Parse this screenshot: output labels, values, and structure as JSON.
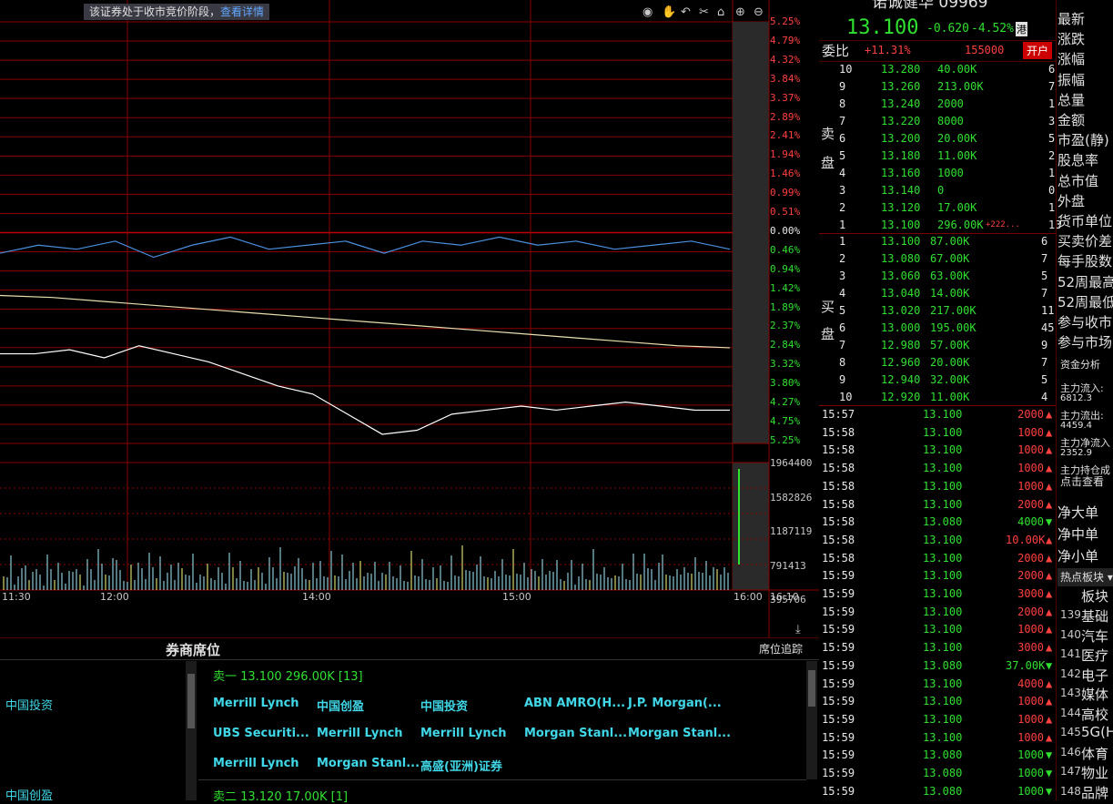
{
  "notice": {
    "text": "该证券处于收市竞价阶段，",
    "link": "查看详情"
  },
  "pct_labels": [
    {
      "text": "5.25%",
      "color": "#ff4040"
    },
    {
      "text": "4.79%",
      "color": "#ff4040"
    },
    {
      "text": "4.32%",
      "color": "#ff4040"
    },
    {
      "text": "3.84%",
      "color": "#ff4040"
    },
    {
      "text": "3.37%",
      "color": "#ff4040"
    },
    {
      "text": "2.89%",
      "color": "#ff4040"
    },
    {
      "text": "2.41%",
      "color": "#ff4040"
    },
    {
      "text": "1.94%",
      "color": "#ff4040"
    },
    {
      "text": "1.46%",
      "color": "#ff4040"
    },
    {
      "text": "0.99%",
      "color": "#ff4040"
    },
    {
      "text": "0.51%",
      "color": "#ff4040"
    },
    {
      "text": "0.00%",
      "color": "#e8e8e8"
    },
    {
      "text": "0.46%",
      "color": "#30e030"
    },
    {
      "text": "0.94%",
      "color": "#30e030"
    },
    {
      "text": "1.42%",
      "color": "#30e030"
    },
    {
      "text": "1.89%",
      "color": "#30e030"
    },
    {
      "text": "2.37%",
      "color": "#30e030"
    },
    {
      "text": "2.84%",
      "color": "#30e030"
    },
    {
      "text": "3.32%",
      "color": "#30e030"
    },
    {
      "text": "3.80%",
      "color": "#30e030"
    },
    {
      "text": "4.27%",
      "color": "#30e030"
    },
    {
      "text": "4.75%",
      "color": "#30e030"
    },
    {
      "text": "5.25%",
      "color": "#30e030"
    }
  ],
  "volume_labels": [
    "1964400",
    "1582826",
    "1187119",
    "791413",
    "395706"
  ],
  "time_labels": [
    "11:30",
    "12:00",
    "14:00",
    "15:00",
    "16:00",
    "16:10"
  ],
  "header": {
    "price": "13.100",
    "change": "-0.620",
    "change_pct": "-4.52%",
    "market_badge": "港"
  },
  "weibi": {
    "label": "委比",
    "value": "+11.31%",
    "volume": "155000",
    "button": "开户"
  },
  "sell_label": [
    "卖",
    "盘"
  ],
  "buy_label": [
    "买",
    "盘"
  ],
  "asks": [
    {
      "lvl": "10",
      "price": "13.280",
      "vol": "40.00K",
      "n": "6"
    },
    {
      "lvl": "9",
      "price": "13.260",
      "vol": "213.00K",
      "n": "7"
    },
    {
      "lvl": "8",
      "price": "13.240",
      "vol": "2000",
      "n": "1"
    },
    {
      "lvl": "7",
      "price": "13.220",
      "vol": "8000",
      "n": "3"
    },
    {
      "lvl": "6",
      "price": "13.200",
      "vol": "20.00K",
      "n": "5"
    },
    {
      "lvl": "5",
      "price": "13.180",
      "vol": "11.00K",
      "n": "2"
    },
    {
      "lvl": "4",
      "price": "13.160",
      "vol": "1000",
      "n": "1"
    },
    {
      "lvl": "3",
      "price": "13.140",
      "vol": "0",
      "n": "0"
    },
    {
      "lvl": "2",
      "price": "13.120",
      "vol": "17.00K",
      "n": "1"
    },
    {
      "lvl": "1",
      "price": "13.100",
      "vol": "296.00K",
      "n": "13",
      "extra": "+222..."
    }
  ],
  "bids": [
    {
      "lvl": "1",
      "price": "13.100",
      "vol": "87.00K",
      "n": "6"
    },
    {
      "lvl": "2",
      "price": "13.080",
      "vol": "67.00K",
      "n": "7"
    },
    {
      "lvl": "3",
      "price": "13.060",
      "vol": "63.00K",
      "n": "5"
    },
    {
      "lvl": "4",
      "price": "13.040",
      "vol": "14.00K",
      "n": "7"
    },
    {
      "lvl": "5",
      "price": "13.020",
      "vol": "217.00K",
      "n": "11"
    },
    {
      "lvl": "6",
      "price": "13.000",
      "vol": "195.00K",
      "n": "45"
    },
    {
      "lvl": "7",
      "price": "12.980",
      "vol": "57.00K",
      "n": "9"
    },
    {
      "lvl": "8",
      "price": "12.960",
      "vol": "20.00K",
      "n": "7"
    },
    {
      "lvl": "9",
      "price": "12.940",
      "vol": "32.00K",
      "n": "5"
    },
    {
      "lvl": "10",
      "price": "12.920",
      "vol": "11.00K",
      "n": "4"
    }
  ],
  "ticks": [
    {
      "t": "15:57",
      "p": "13.100",
      "v": "2000",
      "d": "up"
    },
    {
      "t": "15:58",
      "p": "13.100",
      "v": "1000",
      "d": "up"
    },
    {
      "t": "15:58",
      "p": "13.100",
      "v": "1000",
      "d": "up"
    },
    {
      "t": "15:58",
      "p": "13.100",
      "v": "1000",
      "d": "up"
    },
    {
      "t": "15:58",
      "p": "13.100",
      "v": "1000",
      "d": "up"
    },
    {
      "t": "15:58",
      "p": "13.100",
      "v": "2000",
      "d": "up"
    },
    {
      "t": "15:58",
      "p": "13.080",
      "v": "4000",
      "d": "down"
    },
    {
      "t": "15:58",
      "p": "13.100",
      "v": "10.00K",
      "d": "up"
    },
    {
      "t": "15:58",
      "p": "13.100",
      "v": "2000",
      "d": "up"
    },
    {
      "t": "15:59",
      "p": "13.100",
      "v": "2000",
      "d": "up"
    },
    {
      "t": "15:59",
      "p": "13.100",
      "v": "3000",
      "d": "up"
    },
    {
      "t": "15:59",
      "p": "13.100",
      "v": "2000",
      "d": "up"
    },
    {
      "t": "15:59",
      "p": "13.100",
      "v": "1000",
      "d": "up"
    },
    {
      "t": "15:59",
      "p": "13.100",
      "v": "3000",
      "d": "up"
    },
    {
      "t": "15:59",
      "p": "13.080",
      "v": "37.00K",
      "d": "down"
    },
    {
      "t": "15:59",
      "p": "13.100",
      "v": "4000",
      "d": "up"
    },
    {
      "t": "15:59",
      "p": "13.100",
      "v": "1000",
      "d": "up"
    },
    {
      "t": "15:59",
      "p": "13.100",
      "v": "1000",
      "d": "up"
    },
    {
      "t": "15:59",
      "p": "13.100",
      "v": "1000",
      "d": "up"
    },
    {
      "t": "15:59",
      "p": "13.080",
      "v": "1000",
      "d": "down"
    },
    {
      "t": "15:59",
      "p": "13.080",
      "v": "1000",
      "d": "down"
    },
    {
      "t": "15:59",
      "p": "13.080",
      "v": "1000",
      "d": "down"
    }
  ],
  "side_labels": [
    "最新",
    "涨跌",
    "涨幅",
    "振幅",
    "总量",
    "金额",
    "市盈(静)",
    "股息率",
    "总市值",
    "外盘",
    "货币单位",
    "买卖价差",
    "每手股数",
    "52周最高",
    "52周最低",
    "参与收市",
    "参与市场"
  ],
  "fund": {
    "title": "资金分析",
    "in_label": "主力流入:",
    "in_value": "6812.3",
    "out_label": "主力流出:",
    "out_value": "4459.4",
    "net_label": "主力净流入",
    "net_value": "2352.9",
    "hold_label": "主力持仓成",
    "link": "点击查看"
  },
  "orders": [
    "净大单",
    "净中单",
    "净小单"
  ],
  "hot_tab": "热点板块",
  "sectors_title": "板块",
  "sectors": [
    {
      "n": "139",
      "name": "基础"
    },
    {
      "n": "140",
      "name": "汽车"
    },
    {
      "n": "141",
      "name": "医疗"
    },
    {
      "n": "142",
      "name": "电子"
    },
    {
      "n": "143",
      "name": "媒体"
    },
    {
      "n": "144",
      "name": "高校"
    },
    {
      "n": "145",
      "name": "5G(H"
    },
    {
      "n": "146",
      "name": "体育"
    },
    {
      "n": "147",
      "name": "物业"
    },
    {
      "n": "148",
      "name": "品牌"
    }
  ],
  "broker": {
    "title": "券商席位",
    "tab": "席位追踪",
    "left": [
      "中国投资",
      "中国创盈"
    ],
    "sell1": "卖一  13.100 296.00K [13]",
    "sell2": "卖二  13.120 17.00K [1]",
    "names": [
      [
        "Merrill Lynch",
        "中国创盈",
        "中国投资",
        "ABN AMRO(H...",
        "J.P. Morgan(..."
      ],
      [
        "UBS Securiti...",
        "Merrill Lynch",
        "Merrill Lynch",
        "Morgan Stanl...",
        "Morgan Stanl..."
      ],
      [
        "Merrill Lynch",
        "Morgan Stanl...",
        "高盛(亚洲)证券"
      ]
    ]
  },
  "chart_data": {
    "type": "line",
    "series": [
      {
        "values": [
          0.5,
          0.3,
          0.4,
          0.2,
          0.6,
          0.3,
          0.1,
          0.4,
          0.3,
          0.2,
          0.5,
          0.2,
          0.3,
          0.1,
          0.3,
          0.2,
          0.4,
          0.3,
          0.2,
          0.4
        ]
      },
      {
        "values": [
          1.55,
          1.6,
          1.7,
          1.8,
          1.9,
          2.0,
          2.1,
          2.2,
          2.3,
          2.4,
          2.5,
          2.6,
          2.7,
          2.8,
          2.85
        ]
      },
      {
        "values": [
          3.0,
          3.0,
          2.9,
          3.1,
          2.8,
          3.0,
          3.2,
          3.5,
          3.8,
          4.0,
          4.5,
          5.0,
          4.9,
          4.5,
          4.4,
          4.3,
          4.4,
          4.3,
          4.2,
          4.3,
          4.4,
          4.4
        ]
      }
    ],
    "ylim": [
      -5.25,
      5.25
    ],
    "colors": {
      "up": "#ff4040",
      "down": "#30e030",
      "grid": "#8a0000"
    }
  }
}
